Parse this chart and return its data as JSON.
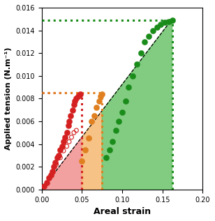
{
  "title": "",
  "xlabel": "Areal strain",
  "ylabel": "Applied tension (N.m⁻¹)",
  "xlim": [
    0,
    0.2
  ],
  "ylim": [
    0,
    0.016
  ],
  "xticks": [
    0,
    0.05,
    0.1,
    0.15,
    0.2
  ],
  "yticks": [
    0,
    0.002,
    0.004,
    0.006,
    0.008,
    0.01,
    0.012,
    0.014,
    0.016
  ],
  "red_filled_x": [
    0.003,
    0.006,
    0.009,
    0.011,
    0.013,
    0.015,
    0.017,
    0.019,
    0.021,
    0.023,
    0.025,
    0.027,
    0.029,
    0.031,
    0.033,
    0.034,
    0.036,
    0.038,
    0.04,
    0.041,
    0.043,
    0.045,
    0.047,
    0.048
  ],
  "red_filled_y": [
    0.0003,
    0.0006,
    0.001,
    0.0013,
    0.0016,
    0.002,
    0.0024,
    0.0028,
    0.003,
    0.0035,
    0.0038,
    0.0042,
    0.0046,
    0.005,
    0.0056,
    0.006,
    0.0065,
    0.007,
    0.0075,
    0.0078,
    0.008,
    0.0082,
    0.0083,
    0.0084
  ],
  "red_open_x": [
    0.009,
    0.014,
    0.018,
    0.023,
    0.027,
    0.031,
    0.034,
    0.037,
    0.04,
    0.043
  ],
  "red_open_y": [
    0.001,
    0.0016,
    0.0022,
    0.0028,
    0.0034,
    0.0038,
    0.0042,
    0.0046,
    0.005,
    0.0052
  ],
  "orange_filled_x": [
    0.05,
    0.054,
    0.058,
    0.062,
    0.065,
    0.068,
    0.071,
    0.073,
    0.075
  ],
  "orange_filled_y": [
    0.0025,
    0.0035,
    0.0045,
    0.006,
    0.0065,
    0.0072,
    0.0078,
    0.0082,
    0.0084
  ],
  "green_filled_x": [
    0.08,
    0.084,
    0.088,
    0.092,
    0.096,
    0.1,
    0.104,
    0.108,
    0.113,
    0.118,
    0.123,
    0.128,
    0.133,
    0.138,
    0.143,
    0.148,
    0.153,
    0.158,
    0.162
  ],
  "green_filled_y": [
    0.0028,
    0.0035,
    0.0042,
    0.0052,
    0.006,
    0.0068,
    0.0078,
    0.009,
    0.01,
    0.011,
    0.012,
    0.013,
    0.0135,
    0.014,
    0.0143,
    0.0145,
    0.0147,
    0.0148,
    0.0149
  ],
  "red_hline_y": 0.0085,
  "red_hline_x_end": 0.05,
  "orange_hline_y": 0.0085,
  "orange_hline_x_end": 0.075,
  "green_hline_y": 0.0149,
  "green_hline_x_end": 0.162,
  "red_vline_x": 0.05,
  "orange_vline_x": 0.075,
  "green_vline_x": 0.162,
  "slope": 0.0925,
  "red_color": "#d42020",
  "orange_color": "#e08020",
  "green_color": "#1a8c1a",
  "fill_red_color": "#f09090",
  "fill_orange_color": "#f5b870",
  "fill_green_color": "#6cc46c",
  "dot_size_large": 35,
  "dot_size_small": 18,
  "background_color": "#ffffff"
}
